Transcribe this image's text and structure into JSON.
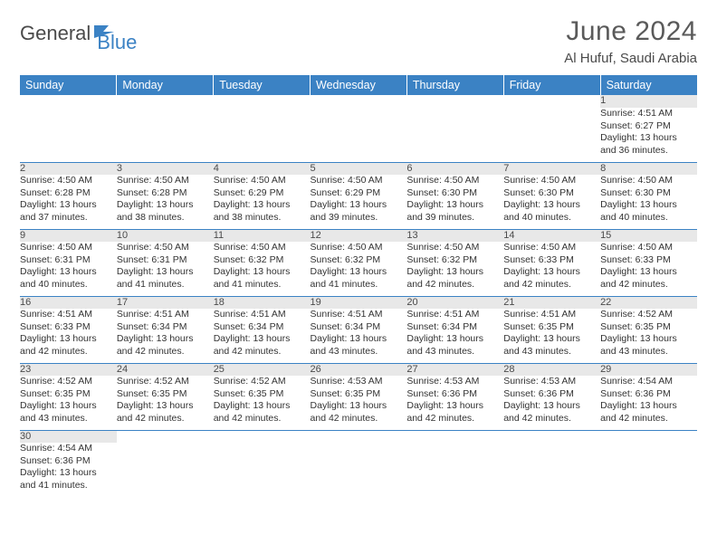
{
  "logo": {
    "text1": "General",
    "text2": "Blue"
  },
  "title": "June 2024",
  "location": "Al Hufuf, Saudi Arabia",
  "colors": {
    "header_bg": "#3b82c4",
    "header_text": "#ffffff",
    "daynum_bg": "#e8e8e8",
    "text": "#333333",
    "border": "#3b82c4"
  },
  "weekdays": [
    "Sunday",
    "Monday",
    "Tuesday",
    "Wednesday",
    "Thursday",
    "Friday",
    "Saturday"
  ],
  "weeks": [
    [
      null,
      null,
      null,
      null,
      null,
      null,
      {
        "n": "1",
        "sunrise": "4:51 AM",
        "sunset": "6:27 PM",
        "dayh": "13",
        "daym": "36"
      }
    ],
    [
      {
        "n": "2",
        "sunrise": "4:50 AM",
        "sunset": "6:28 PM",
        "dayh": "13",
        "daym": "37"
      },
      {
        "n": "3",
        "sunrise": "4:50 AM",
        "sunset": "6:28 PM",
        "dayh": "13",
        "daym": "38"
      },
      {
        "n": "4",
        "sunrise": "4:50 AM",
        "sunset": "6:29 PM",
        "dayh": "13",
        "daym": "38"
      },
      {
        "n": "5",
        "sunrise": "4:50 AM",
        "sunset": "6:29 PM",
        "dayh": "13",
        "daym": "39"
      },
      {
        "n": "6",
        "sunrise": "4:50 AM",
        "sunset": "6:30 PM",
        "dayh": "13",
        "daym": "39"
      },
      {
        "n": "7",
        "sunrise": "4:50 AM",
        "sunset": "6:30 PM",
        "dayh": "13",
        "daym": "40"
      },
      {
        "n": "8",
        "sunrise": "4:50 AM",
        "sunset": "6:30 PM",
        "dayh": "13",
        "daym": "40"
      }
    ],
    [
      {
        "n": "9",
        "sunrise": "4:50 AM",
        "sunset": "6:31 PM",
        "dayh": "13",
        "daym": "40"
      },
      {
        "n": "10",
        "sunrise": "4:50 AM",
        "sunset": "6:31 PM",
        "dayh": "13",
        "daym": "41"
      },
      {
        "n": "11",
        "sunrise": "4:50 AM",
        "sunset": "6:32 PM",
        "dayh": "13",
        "daym": "41"
      },
      {
        "n": "12",
        "sunrise": "4:50 AM",
        "sunset": "6:32 PM",
        "dayh": "13",
        "daym": "41"
      },
      {
        "n": "13",
        "sunrise": "4:50 AM",
        "sunset": "6:32 PM",
        "dayh": "13",
        "daym": "42"
      },
      {
        "n": "14",
        "sunrise": "4:50 AM",
        "sunset": "6:33 PM",
        "dayh": "13",
        "daym": "42"
      },
      {
        "n": "15",
        "sunrise": "4:50 AM",
        "sunset": "6:33 PM",
        "dayh": "13",
        "daym": "42"
      }
    ],
    [
      {
        "n": "16",
        "sunrise": "4:51 AM",
        "sunset": "6:33 PM",
        "dayh": "13",
        "daym": "42"
      },
      {
        "n": "17",
        "sunrise": "4:51 AM",
        "sunset": "6:34 PM",
        "dayh": "13",
        "daym": "42"
      },
      {
        "n": "18",
        "sunrise": "4:51 AM",
        "sunset": "6:34 PM",
        "dayh": "13",
        "daym": "42"
      },
      {
        "n": "19",
        "sunrise": "4:51 AM",
        "sunset": "6:34 PM",
        "dayh": "13",
        "daym": "43"
      },
      {
        "n": "20",
        "sunrise": "4:51 AM",
        "sunset": "6:34 PM",
        "dayh": "13",
        "daym": "43"
      },
      {
        "n": "21",
        "sunrise": "4:51 AM",
        "sunset": "6:35 PM",
        "dayh": "13",
        "daym": "43"
      },
      {
        "n": "22",
        "sunrise": "4:52 AM",
        "sunset": "6:35 PM",
        "dayh": "13",
        "daym": "43"
      }
    ],
    [
      {
        "n": "23",
        "sunrise": "4:52 AM",
        "sunset": "6:35 PM",
        "dayh": "13",
        "daym": "43"
      },
      {
        "n": "24",
        "sunrise": "4:52 AM",
        "sunset": "6:35 PM",
        "dayh": "13",
        "daym": "42"
      },
      {
        "n": "25",
        "sunrise": "4:52 AM",
        "sunset": "6:35 PM",
        "dayh": "13",
        "daym": "42"
      },
      {
        "n": "26",
        "sunrise": "4:53 AM",
        "sunset": "6:35 PM",
        "dayh": "13",
        "daym": "42"
      },
      {
        "n": "27",
        "sunrise": "4:53 AM",
        "sunset": "6:36 PM",
        "dayh": "13",
        "daym": "42"
      },
      {
        "n": "28",
        "sunrise": "4:53 AM",
        "sunset": "6:36 PM",
        "dayh": "13",
        "daym": "42"
      },
      {
        "n": "29",
        "sunrise": "4:54 AM",
        "sunset": "6:36 PM",
        "dayh": "13",
        "daym": "42"
      }
    ],
    [
      {
        "n": "30",
        "sunrise": "4:54 AM",
        "sunset": "6:36 PM",
        "dayh": "13",
        "daym": "41"
      },
      null,
      null,
      null,
      null,
      null,
      null
    ]
  ],
  "labels": {
    "sunrise_prefix": "Sunrise: ",
    "sunset_prefix": "Sunset: ",
    "daylight_prefix": "Daylight: ",
    "hours_word": " hours",
    "and_word": "and ",
    "minutes_word": " minutes."
  }
}
